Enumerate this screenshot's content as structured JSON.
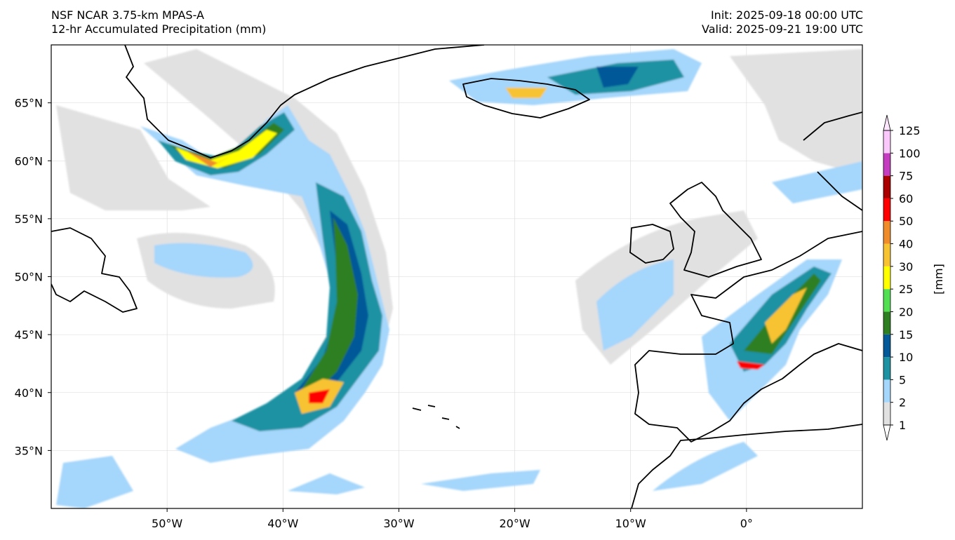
{
  "header": {
    "model": "NSF NCAR 3.75-km MPAS-A",
    "field": "12-hr Accumulated Precipitation (mm)",
    "init": "Init: 2025-09-18 00:00 UTC",
    "valid": "Valid: 2025-09-21 19:00 UTC"
  },
  "map": {
    "lon_range": [
      -60,
      10
    ],
    "lat_range": [
      30,
      70
    ],
    "lon_ticks": [
      -50,
      -40,
      -30,
      -20,
      -10,
      0
    ],
    "lat_ticks": [
      35,
      40,
      45,
      50,
      55,
      60,
      65
    ],
    "lon_tick_labels": [
      "50°W",
      "40°W",
      "30°W",
      "20°W",
      "10°W",
      "0°"
    ],
    "lat_tick_labels": [
      "35°N",
      "40°N",
      "45°N",
      "50°N",
      "55°N",
      "60°N",
      "65°N"
    ]
  },
  "colorbar": {
    "label": "[mm]",
    "levels": [
      1,
      2,
      5,
      10,
      15,
      20,
      25,
      30,
      40,
      50,
      60,
      75,
      100,
      125
    ],
    "level_labels": [
      "1",
      "2",
      "5",
      "10",
      "15",
      "20",
      "25",
      "30",
      "40",
      "50",
      "60",
      "75",
      "100",
      "125"
    ],
    "colors": [
      "#e1e1e1",
      "#a5d6fb",
      "#1d92a3",
      "#045998",
      "#2e7f22",
      "#52e052",
      "#ffff00",
      "#f8c331",
      "#f08c2a",
      "#ff0000",
      "#aa0000",
      "#c43cbf",
      "#fbc8fb"
    ]
  }
}
